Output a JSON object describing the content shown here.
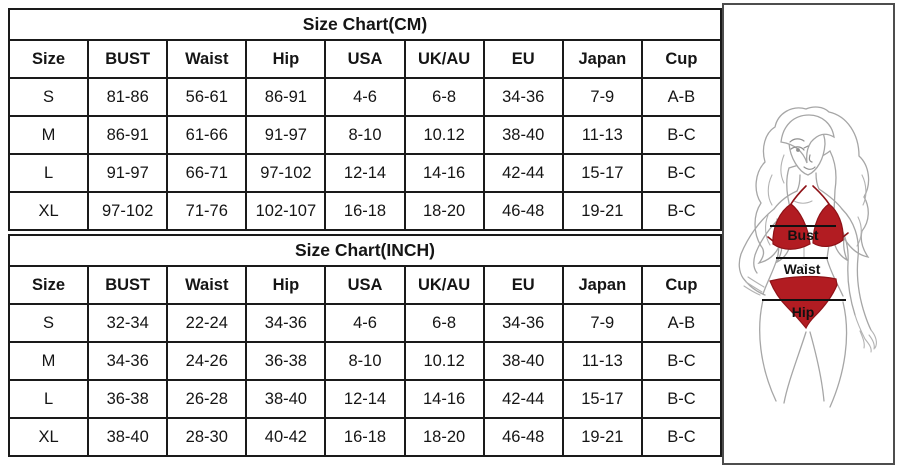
{
  "page": {
    "background": "#ffffff"
  },
  "colors": {
    "table_border": "#1a1a1a",
    "text": "#151515",
    "panel_border": "#4d4d4d",
    "bikini_red": "#b21c22",
    "figure_line_gray": "#a6a6a6",
    "measure_line": "#111111"
  },
  "tables": [
    {
      "title": "Size Chart(CM)",
      "columns": [
        "Size",
        "BUST",
        "Waist",
        "Hip",
        "USA",
        "UK/AU",
        "EU",
        "Japan",
        "Cup"
      ],
      "rows": [
        [
          "S",
          "81-86",
          "56-61",
          "86-91",
          "4-6",
          "6-8",
          "34-36",
          "7-9",
          "A-B"
        ],
        [
          "M",
          "86-91",
          "61-66",
          "91-97",
          "8-10",
          "10.12",
          "38-40",
          "11-13",
          "B-C"
        ],
        [
          "L",
          "91-97",
          "66-71",
          "97-102",
          "12-14",
          "14-16",
          "42-44",
          "15-17",
          "B-C"
        ],
        [
          "XL",
          "97-102",
          "71-76",
          "102-107",
          "16-18",
          "18-20",
          "46-48",
          "19-21",
          "B-C"
        ]
      ]
    },
    {
      "title": "Size Chart(INCH)",
      "columns": [
        "Size",
        "BUST",
        "Waist",
        "Hip",
        "USA",
        "UK/AU",
        "EU",
        "Japan",
        "Cup"
      ],
      "rows": [
        [
          "S",
          "32-34",
          "22-24",
          "34-36",
          "4-6",
          "6-8",
          "34-36",
          "7-9",
          "A-B"
        ],
        [
          "M",
          "34-36",
          "24-26",
          "36-38",
          "8-10",
          "10.12",
          "38-40",
          "11-13",
          "B-C"
        ],
        [
          "L",
          "36-38",
          "26-28",
          "38-40",
          "12-14",
          "14-16",
          "42-44",
          "15-17",
          "B-C"
        ],
        [
          "XL",
          "38-40",
          "28-30",
          "40-42",
          "16-18",
          "18-20",
          "46-48",
          "19-21",
          "B-C"
        ]
      ]
    }
  ],
  "figure": {
    "bust_label": "Bust",
    "waist_label": "Waist",
    "hip_label": "Hip"
  }
}
